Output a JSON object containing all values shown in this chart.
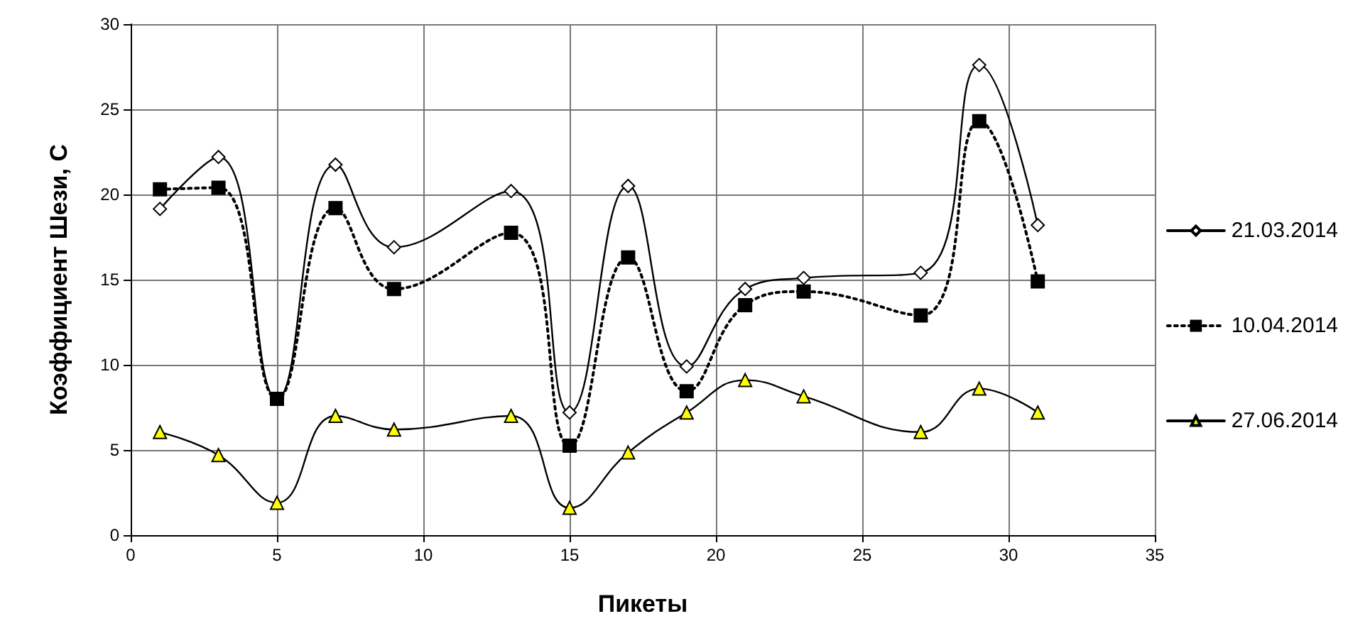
{
  "chart_data": {
    "type": "line",
    "xlabel": "Пикеты",
    "ylabel": "Коэффициент Шези, С",
    "x": [
      1,
      3,
      5,
      7,
      9,
      13,
      15,
      17,
      19,
      21,
      23,
      27,
      29,
      31
    ],
    "series": [
      {
        "name": "21.03.2014",
        "color": "#ffffff",
        "marker": "diamond",
        "line_style": "solid",
        "values": [
          19.15,
          22.2,
          8.0,
          21.75,
          16.9,
          20.2,
          7.2,
          20.5,
          9.9,
          14.45,
          15.1,
          15.4,
          27.6,
          18.2
        ]
      },
      {
        "name": "10.04.2014",
        "color": "#000000",
        "marker": "square",
        "line_style": "dotted",
        "values": [
          20.3,
          20.4,
          8.0,
          19.2,
          14.45,
          17.75,
          5.25,
          16.3,
          8.45,
          13.5,
          14.3,
          12.9,
          24.3,
          14.9
        ]
      },
      {
        "name": "27.06.2014",
        "color": "#ffff00",
        "marker": "triangle",
        "line_style": "solid",
        "values": [
          6.05,
          4.7,
          1.9,
          7.0,
          6.2,
          7.0,
          1.6,
          4.85,
          7.2,
          9.1,
          8.15,
          6.05,
          8.6,
          7.2
        ]
      }
    ],
    "xlim": [
      0,
      35
    ],
    "xticks": [
      0,
      5,
      10,
      15,
      20,
      25,
      30,
      35
    ],
    "ylim": [
      0,
      30
    ],
    "yticks": [
      0,
      5,
      10,
      15,
      20,
      25,
      30
    ],
    "grid": true,
    "legend": "right"
  }
}
